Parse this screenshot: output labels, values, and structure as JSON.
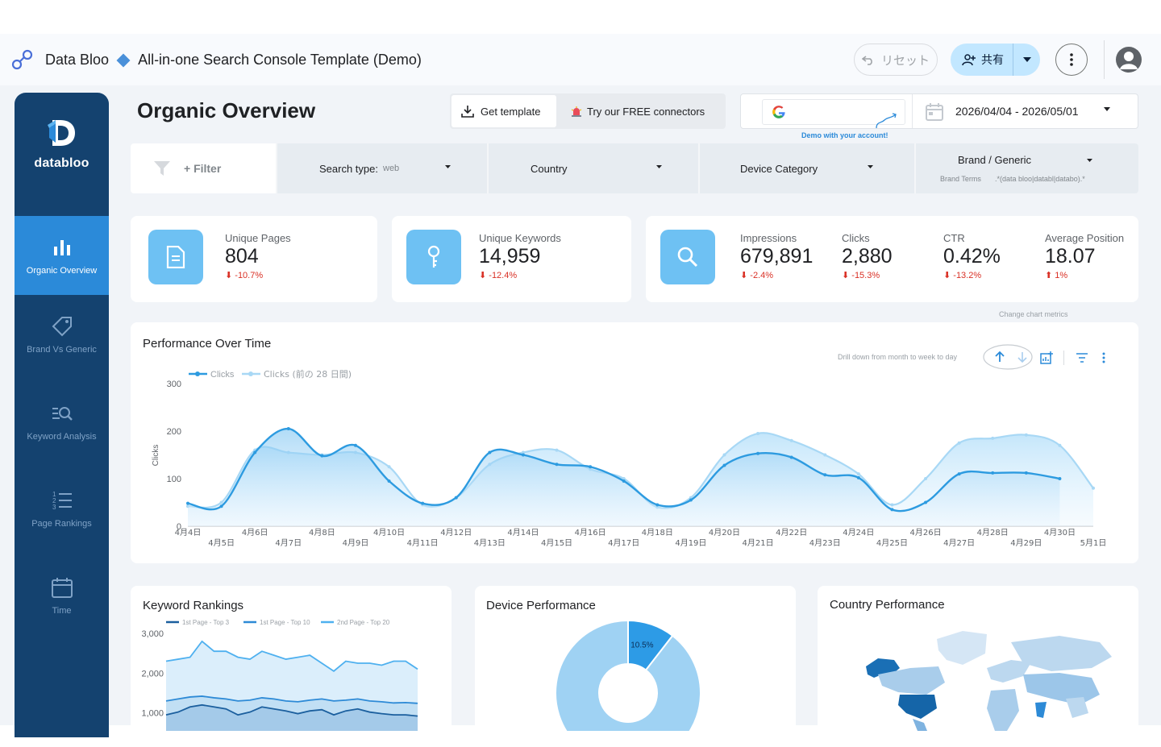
{
  "app": {
    "brand": "Data Bloo",
    "report_title": "All-in-one Search Console Template (Demo)",
    "reset_label": "リセット",
    "share_label": "共有"
  },
  "sidebar": {
    "brand_name": "databloo",
    "items": [
      {
        "label": "Organic Overview",
        "icon": "bar-chart-icon",
        "active": true
      },
      {
        "label": "Brand Vs Generic",
        "icon": "tag-icon",
        "active": false
      },
      {
        "label": "Keyword Analysis",
        "icon": "search-list-icon",
        "active": false
      },
      {
        "label": "Page Rankings",
        "icon": "numbered-list-icon",
        "active": false
      },
      {
        "label": "Time",
        "icon": "calendar-icon",
        "active": false
      }
    ]
  },
  "header": {
    "page_title": "Organic Overview",
    "get_template": "Get template",
    "free_connectors": "Try our FREE connectors",
    "date_range": "2026/04/04 - 2026/05/01",
    "demo_note": "Demo with your account!"
  },
  "filters": {
    "add_filter": "+ Filter",
    "search_type_label": "Search type",
    "search_type_value": "web",
    "country": "Country",
    "device_category": "Device Category",
    "brand_generic": "Brand / Generic",
    "brand_terms_label": "Brand Terms",
    "brand_terms_value": ".*(data bloo|databl|databo).*"
  },
  "kpis": {
    "pages": {
      "label": "Unique Pages",
      "value": "804",
      "delta": "-10.7%"
    },
    "keywords": {
      "label": "Unique Keywords",
      "value": "14,959",
      "delta": "-12.4%"
    },
    "impressions": {
      "label": "Impressions",
      "value": "679,891",
      "delta": "-2.4%"
    },
    "clicks": {
      "label": "Clicks",
      "value": "2,880",
      "delta": "-15.3%"
    },
    "ctr": {
      "label": "CTR",
      "value": "0.42%",
      "delta": "-13.2%"
    },
    "position": {
      "label": "Average Position",
      "value": "18.07",
      "delta": "1%"
    }
  },
  "perf": {
    "title": "Performance Over Time",
    "hint_metrics": "Change chart metrics",
    "hint_drill": "Drill down from month to week to day"
  },
  "colors": {
    "accent": "#2b8ad9",
    "sidebar": "#14426f",
    "series_current": "#2d9be0",
    "series_previous": "#a8d8f5",
    "negative": "#d93025"
  },
  "chart_data": [
    {
      "type": "line",
      "title": "Performance Over Time",
      "ylabel": "Clicks",
      "ylim": [
        0,
        300
      ],
      "yticks": [
        0,
        100,
        200,
        300
      ],
      "x": [
        "4月4日",
        "4月5日",
        "4月6日",
        "4月7日",
        "4月8日",
        "4月9日",
        "4月10日",
        "4月11日",
        "4月12日",
        "4月13日",
        "4月14日",
        "4月15日",
        "4月16日",
        "4月17日",
        "4月18日",
        "4月19日",
        "4月20日",
        "4月21日",
        "4月22日",
        "4月23日",
        "4月24日",
        "4月25日",
        "4月26日",
        "4月27日",
        "4月28日",
        "4月29日",
        "4月30日",
        "5月1日"
      ],
      "series": [
        {
          "name": "Clicks",
          "values": [
            48,
            42,
            155,
            205,
            148,
            170,
            95,
            48,
            60,
            155,
            150,
            130,
            125,
            95,
            45,
            55,
            128,
            153,
            145,
            108,
            102,
            35,
            50,
            110,
            112,
            112,
            100,
            null
          ]
        },
        {
          "name": "Clicks (前の 28 日間)",
          "values": [
            42,
            50,
            160,
            155,
            150,
            155,
            125,
            45,
            60,
            130,
            155,
            160,
            120,
            100,
            40,
            60,
            150,
            195,
            180,
            150,
            110,
            45,
            100,
            175,
            185,
            192,
            170,
            80
          ]
        }
      ],
      "legend": "top-left"
    },
    {
      "type": "area",
      "title": "Keyword Rankings",
      "ylim": [
        0,
        3000
      ],
      "yticks": [
        "1,000",
        "2,000",
        "3,000"
      ],
      "series": [
        {
          "name": "1st Page - Top 3",
          "values": [
            950,
            1020,
            1150,
            1200,
            1150,
            1100,
            950,
            1020,
            1150,
            1100,
            1050,
            980,
            1050,
            1080,
            950,
            1050,
            1100,
            1020,
            980,
            950,
            950,
            920
          ]
        },
        {
          "name": "1st Page - Top 10",
          "values": [
            1300,
            1350,
            1400,
            1420,
            1380,
            1350,
            1300,
            1320,
            1380,
            1350,
            1300,
            1280,
            1320,
            1350,
            1300,
            1320,
            1350,
            1300,
            1280,
            1250,
            1260,
            1240
          ]
        },
        {
          "name": "2nd Page - Top 20",
          "values": [
            2300,
            2350,
            2400,
            2800,
            2550,
            2550,
            2400,
            2350,
            2550,
            2450,
            2350,
            2400,
            2450,
            2250,
            2050,
            2300,
            2250,
            2250,
            2200,
            2300,
            2300,
            2100
          ]
        }
      ],
      "legend": "top"
    },
    {
      "type": "pie",
      "title": "Device Performance",
      "slices": [
        {
          "label": "10.5%",
          "value": 10.5
        },
        {
          "label": "",
          "value": 89.5
        }
      ]
    }
  ],
  "country": {
    "title": "Country Performance"
  }
}
